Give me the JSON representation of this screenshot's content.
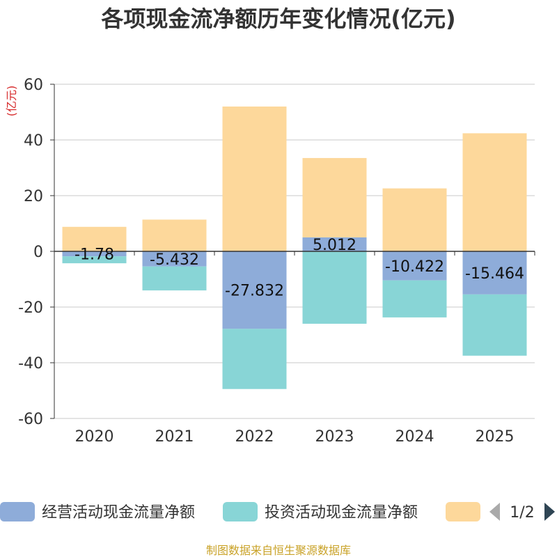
{
  "chart_data": {
    "type": "bar",
    "stacked": true,
    "title": "各项现金流净额历年变化情况(亿元)",
    "ylabel": "(亿元)",
    "categories": [
      "2020",
      "2021",
      "2022",
      "2023",
      "2024",
      "2025"
    ],
    "ylim": [
      -60,
      60
    ],
    "yticks": [
      60,
      40,
      20,
      0,
      -20,
      -40,
      -60
    ],
    "grid": true,
    "series": [
      {
        "name": "经营活动现金流量净额",
        "color": "#8eacd9",
        "values": [
          -1.78,
          -5.432,
          -27.832,
          5.012,
          -10.422,
          -15.464
        ],
        "labels": [
          "-1.78",
          "-5.432",
          "-27.832",
          "5.012",
          "-10.422",
          "-15.464"
        ]
      },
      {
        "name": "投资活动现金流量净额",
        "color": "#88d5d6",
        "values": [
          -2.5,
          -8.6,
          -21.6,
          -26.0,
          -13.3,
          -22.0
        ]
      },
      {
        "name": "",
        "color": "#fdd89b",
        "values": [
          8.8,
          11.4,
          52.0,
          28.5,
          22.6,
          42.4
        ]
      }
    ],
    "legend": {
      "position": "bottom",
      "page": "1/2"
    }
  },
  "footer": "制图数据来自恒生聚源数据库"
}
